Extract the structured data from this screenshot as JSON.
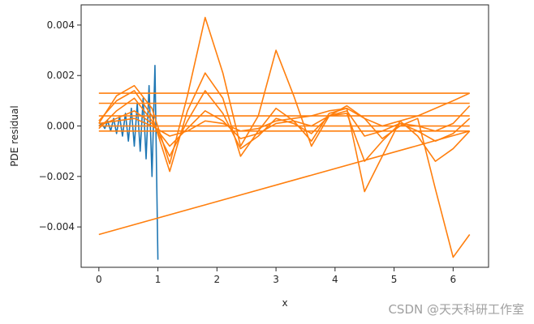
{
  "chart_data": {
    "type": "line",
    "title": "",
    "xlabel": "x",
    "ylabel": "PDE residual",
    "xlim": [
      -0.3,
      6.6
    ],
    "ylim": [
      -0.0056,
      0.0048
    ],
    "x_ticks": [
      0,
      1,
      2,
      3,
      4,
      5,
      6
    ],
    "x_tick_labels": [
      "0",
      "1",
      "2",
      "3",
      "4",
      "5",
      "6"
    ],
    "y_ticks": [
      -0.004,
      -0.002,
      0.0,
      0.002,
      0.004
    ],
    "y_tick_labels": [
      "−0.004",
      "−0.002",
      "0.000",
      "0.002",
      "0.004"
    ],
    "grid": false,
    "series": [
      {
        "color": "#1f77b4",
        "x": [
          0.0,
          0.05,
          0.1,
          0.15,
          0.2,
          0.25,
          0.3,
          0.35,
          0.4,
          0.45,
          0.5,
          0.55,
          0.6,
          0.65,
          0.7,
          0.75,
          0.8,
          0.85,
          0.9,
          0.95,
          1.0
        ],
        "y": [
          0.0,
          0.0001,
          -0.0001,
          0.0002,
          -0.0002,
          0.0003,
          -0.0003,
          0.0004,
          -0.0004,
          0.0005,
          -0.0006,
          0.0007,
          -0.0008,
          0.0009,
          -0.001,
          0.0011,
          -0.0013,
          0.0016,
          -0.002,
          0.0024,
          -0.0053
        ]
      },
      {
        "color": "#ff7f0e",
        "x": [
          0.0,
          0.3,
          0.6,
          0.9,
          1.2,
          1.5,
          1.8,
          2.1,
          2.4,
          2.7,
          3.0,
          3.3,
          3.6,
          3.9,
          4.2,
          4.5,
          4.8,
          5.1,
          5.4,
          5.7,
          6.0,
          6.28
        ],
        "y": [
          0.0001,
          0.0012,
          0.0016,
          0.0007,
          -0.0015,
          0.0012,
          0.0043,
          0.0021,
          -0.0008,
          0.0004,
          0.003,
          0.0012,
          -0.0008,
          0.0004,
          0.0008,
          0.0003,
          -0.0005,
          0.0,
          0.0003,
          -0.0025,
          -0.0052,
          -0.0043
        ]
      },
      {
        "color": "#ff7f0e",
        "x": [
          0.0,
          0.3,
          0.6,
          0.9,
          1.2,
          1.5,
          1.8,
          2.1,
          2.4,
          2.7,
          3.0,
          3.3,
          3.6,
          3.9,
          4.2,
          4.5,
          4.8,
          5.1,
          5.4,
          5.7,
          6.0,
          6.28
        ],
        "y": [
          0.0002,
          0.001,
          0.0014,
          0.0004,
          -0.0018,
          0.0006,
          0.0021,
          0.0011,
          -0.0012,
          -0.0002,
          0.0007,
          0.0002,
          -0.0006,
          0.0005,
          0.0007,
          -0.0026,
          -0.0012,
          0.0002,
          -0.0004,
          -0.0014,
          -0.0009,
          -0.0002
        ]
      },
      {
        "color": "#ff7f0e",
        "x": [
          0.0,
          0.3,
          0.6,
          0.9,
          1.2,
          1.5,
          1.8,
          2.1,
          2.4,
          2.7,
          3.0,
          3.3,
          3.6,
          3.9,
          4.2,
          4.5,
          4.8,
          5.1,
          5.4,
          5.7,
          6.0,
          6.28
        ],
        "y": [
          -0.0001,
          0.0006,
          0.0011,
          0.0002,
          -0.0012,
          0.0002,
          0.0014,
          0.0005,
          -0.0009,
          -0.0004,
          0.0003,
          0.0001,
          -0.0003,
          0.0004,
          0.0005,
          -0.0014,
          -0.0006,
          0.0001,
          -0.0002,
          -0.0006,
          -0.0003,
          0.0003
        ]
      },
      {
        "color": "#ff7f0e",
        "x": [
          0.0,
          0.3,
          0.6,
          0.9,
          1.2,
          1.5,
          1.8,
          2.1,
          2.4,
          2.7,
          3.0,
          3.3,
          3.6,
          3.9,
          4.2,
          4.5,
          4.8,
          5.1,
          5.4,
          5.7,
          6.0,
          6.28
        ],
        "y": [
          0.0,
          0.0003,
          0.0006,
          0.0001,
          -0.0008,
          -0.0001,
          0.0006,
          0.0002,
          -0.0005,
          -0.0003,
          0.0001,
          0.0002,
          0.0,
          0.0004,
          0.0006,
          -0.0004,
          -0.0002,
          0.0001,
          0.0,
          -0.0002,
          0.0001,
          0.0008
        ]
      },
      {
        "color": "#ff7f0e",
        "x": [
          0.0,
          0.3,
          0.6,
          0.9,
          1.2,
          1.5,
          1.8,
          2.1,
          2.4,
          2.7,
          3.0,
          3.3,
          3.6,
          3.9,
          4.2,
          4.5,
          4.8,
          5.1,
          5.4,
          5.7,
          6.0,
          6.28
        ],
        "y": [
          0.0001,
          0.0002,
          0.0003,
          0.0,
          -0.0004,
          -0.0002,
          0.0002,
          0.0001,
          -0.0002,
          -0.0001,
          0.0002,
          0.0003,
          0.0004,
          0.0006,
          0.0007,
          0.0003,
          0.0,
          0.0002,
          0.0004,
          0.0007,
          0.001,
          0.0013
        ]
      },
      {
        "color": "#ff7f0e",
        "x": [
          0.0,
          6.28
        ],
        "y": [
          0.0013,
          0.0013
        ]
      },
      {
        "color": "#ff7f0e",
        "x": [
          0.0,
          6.28
        ],
        "y": [
          0.0009,
          0.0009
        ]
      },
      {
        "color": "#ff7f0e",
        "x": [
          0.0,
          6.28
        ],
        "y": [
          0.0004,
          0.0004
        ]
      },
      {
        "color": "#ff7f0e",
        "x": [
          0.0,
          6.28
        ],
        "y": [
          0.0,
          0.0
        ]
      },
      {
        "color": "#ff7f0e",
        "x": [
          0.0,
          6.28
        ],
        "y": [
          -0.0002,
          -0.0002
        ]
      },
      {
        "color": "#ff7f0e",
        "x": [
          0.0,
          6.28
        ],
        "y": [
          -0.0043,
          -0.0002
        ]
      }
    ]
  },
  "watermark": "CSDN @天天科研工作室"
}
